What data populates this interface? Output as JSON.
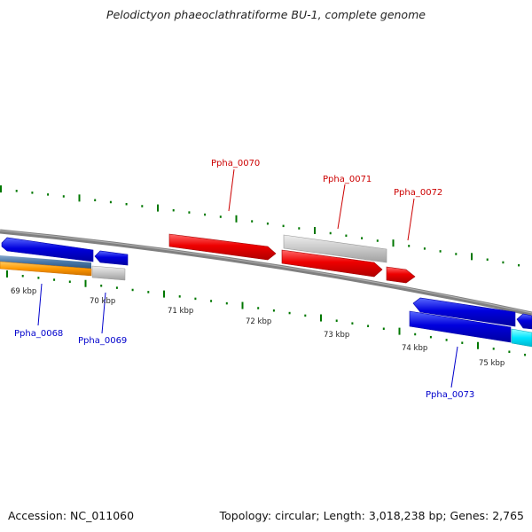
{
  "title": "Pelodictyon phaeoclathratiforme BU-1, complete genome",
  "footer": {
    "accession": "Accession: NC_011060",
    "summary": "Topology: circular; Length: 3,018,238 bp; Genes: 2,765"
  },
  "scale_labels": [
    "69 kbp",
    "70 kbp",
    "71 kbp",
    "72 kbp",
    "73 kbp",
    "74 kbp",
    "75 kbp"
  ],
  "genes": [
    {
      "id": "Ppha_0068",
      "color": "#0000cc"
    },
    {
      "id": "Ppha_0069",
      "color": "#0000cc"
    },
    {
      "id": "Ppha_0070",
      "color": "#cc0000"
    },
    {
      "id": "Ppha_0071",
      "color": "#cc0000"
    },
    {
      "id": "Ppha_0072",
      "color": "#cc0000"
    },
    {
      "id": "Ppha_0073",
      "color": "#0000cc"
    }
  ],
  "colors": {
    "forward_gene": "#ee0000",
    "reverse_gene": "#0000dd",
    "pseudo_gene": "#c8c8c8",
    "rna_gene": "#ff9900",
    "other_gene": "#00e5ff",
    "backbone": "#808080",
    "tick": "#007700"
  }
}
